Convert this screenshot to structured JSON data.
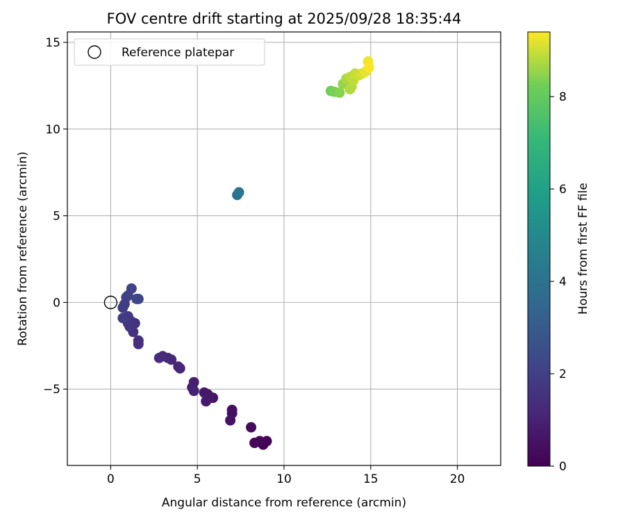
{
  "chart_data": {
    "type": "scatter",
    "title": "FOV centre drift starting at 2025/09/28 18:35:44",
    "xlabel": "Angular distance from reference (arcmin)",
    "ylabel": "Rotation from reference (arcmin)",
    "xlim": [
      -2.5,
      22.5
    ],
    "ylim": [
      -9.4,
      15.6
    ],
    "xticks": [
      0,
      5,
      10,
      15,
      20
    ],
    "xtick_labels": [
      "0",
      "5",
      "10",
      "15",
      "20"
    ],
    "yticks": [
      -5,
      0,
      5,
      10,
      15
    ],
    "ytick_labels": [
      "−5",
      "0",
      "5",
      "10",
      "15"
    ],
    "grid": true,
    "legend": {
      "placement": "top-left",
      "entries": [
        "Reference platepar"
      ]
    },
    "reference_point": {
      "x": 0,
      "y": 0
    },
    "colorbar": {
      "label": "Hours from first FF file",
      "colormap": "viridis",
      "range": [
        0,
        9.4
      ],
      "ticks": [
        0,
        2,
        4,
        6,
        8
      ],
      "tick_labels": [
        "0",
        "2",
        "4",
        "6",
        "8"
      ]
    },
    "points": [
      {
        "x": 8.8,
        "y": -8.2,
        "t": 0.05
      },
      {
        "x": 9.0,
        "y": -8.0,
        "t": 0.1
      },
      {
        "x": 8.6,
        "y": -8.0,
        "t": 0.15
      },
      {
        "x": 8.3,
        "y": -8.1,
        "t": 0.2
      },
      {
        "x": 8.1,
        "y": -7.2,
        "t": 0.3
      },
      {
        "x": 7.0,
        "y": -6.2,
        "t": 0.4
      },
      {
        "x": 7.0,
        "y": -6.4,
        "t": 0.45
      },
      {
        "x": 6.9,
        "y": -6.8,
        "t": 0.5
      },
      {
        "x": 5.9,
        "y": -5.5,
        "t": 0.6
      },
      {
        "x": 5.6,
        "y": -5.3,
        "t": 0.65
      },
      {
        "x": 5.4,
        "y": -5.2,
        "t": 0.7
      },
      {
        "x": 5.5,
        "y": -5.7,
        "t": 0.75
      },
      {
        "x": 4.8,
        "y": -4.6,
        "t": 0.85
      },
      {
        "x": 4.7,
        "y": -4.9,
        "t": 0.9
      },
      {
        "x": 4.8,
        "y": -5.1,
        "t": 0.95
      },
      {
        "x": 4.0,
        "y": -3.8,
        "t": 1.05
      },
      {
        "x": 3.9,
        "y": -3.7,
        "t": 1.1
      },
      {
        "x": 3.5,
        "y": -3.3,
        "t": 1.15
      },
      {
        "x": 3.3,
        "y": -3.2,
        "t": 1.2
      },
      {
        "x": 3.0,
        "y": -3.1,
        "t": 1.25
      },
      {
        "x": 2.8,
        "y": -3.2,
        "t": 1.3
      },
      {
        "x": 1.6,
        "y": -2.2,
        "t": 1.4
      },
      {
        "x": 1.6,
        "y": -2.4,
        "t": 1.45
      },
      {
        "x": 1.4,
        "y": -1.2,
        "t": 1.5
      },
      {
        "x": 1.3,
        "y": -1.7,
        "t": 1.55
      },
      {
        "x": 1.2,
        "y": -1.1,
        "t": 1.6
      },
      {
        "x": 1.0,
        "y": -1.2,
        "t": 1.65
      },
      {
        "x": 1.1,
        "y": -1.4,
        "t": 1.7
      },
      {
        "x": 1.0,
        "y": -0.8,
        "t": 1.75
      },
      {
        "x": 0.8,
        "y": -0.9,
        "t": 1.8
      },
      {
        "x": 0.7,
        "y": -0.9,
        "t": 1.85
      },
      {
        "x": 0.7,
        "y": -0.3,
        "t": 1.9
      },
      {
        "x": 0.8,
        "y": -0.1,
        "t": 1.95
      },
      {
        "x": 0.9,
        "y": 0.3,
        "t": 2.0
      },
      {
        "x": 1.0,
        "y": 0.4,
        "t": 2.05
      },
      {
        "x": 1.2,
        "y": 0.8,
        "t": 2.1
      },
      {
        "x": 1.5,
        "y": 0.2,
        "t": 2.15
      },
      {
        "x": 1.6,
        "y": 0.2,
        "t": 2.2
      },
      {
        "x": 7.3,
        "y": 6.2,
        "t": 4.0
      },
      {
        "x": 7.4,
        "y": 6.35,
        "t": 4.1
      },
      {
        "x": 12.7,
        "y": 12.2,
        "t": 8.2
      },
      {
        "x": 12.9,
        "y": 12.15,
        "t": 8.3
      },
      {
        "x": 13.2,
        "y": 12.1,
        "t": 8.4
      },
      {
        "x": 13.4,
        "y": 12.6,
        "t": 8.55
      },
      {
        "x": 13.6,
        "y": 12.9,
        "t": 8.7
      },
      {
        "x": 13.8,
        "y": 12.3,
        "t": 8.75
      },
      {
        "x": 13.9,
        "y": 12.45,
        "t": 8.8
      },
      {
        "x": 13.8,
        "y": 13.0,
        "t": 8.85
      },
      {
        "x": 14.0,
        "y": 12.8,
        "t": 8.9
      },
      {
        "x": 14.1,
        "y": 13.2,
        "t": 8.95
      },
      {
        "x": 14.3,
        "y": 13.1,
        "t": 9.0
      },
      {
        "x": 14.5,
        "y": 13.2,
        "t": 9.1
      },
      {
        "x": 14.7,
        "y": 13.3,
        "t": 9.2
      },
      {
        "x": 14.85,
        "y": 13.9,
        "t": 9.3
      },
      {
        "x": 14.9,
        "y": 13.55,
        "t": 9.35
      }
    ]
  }
}
